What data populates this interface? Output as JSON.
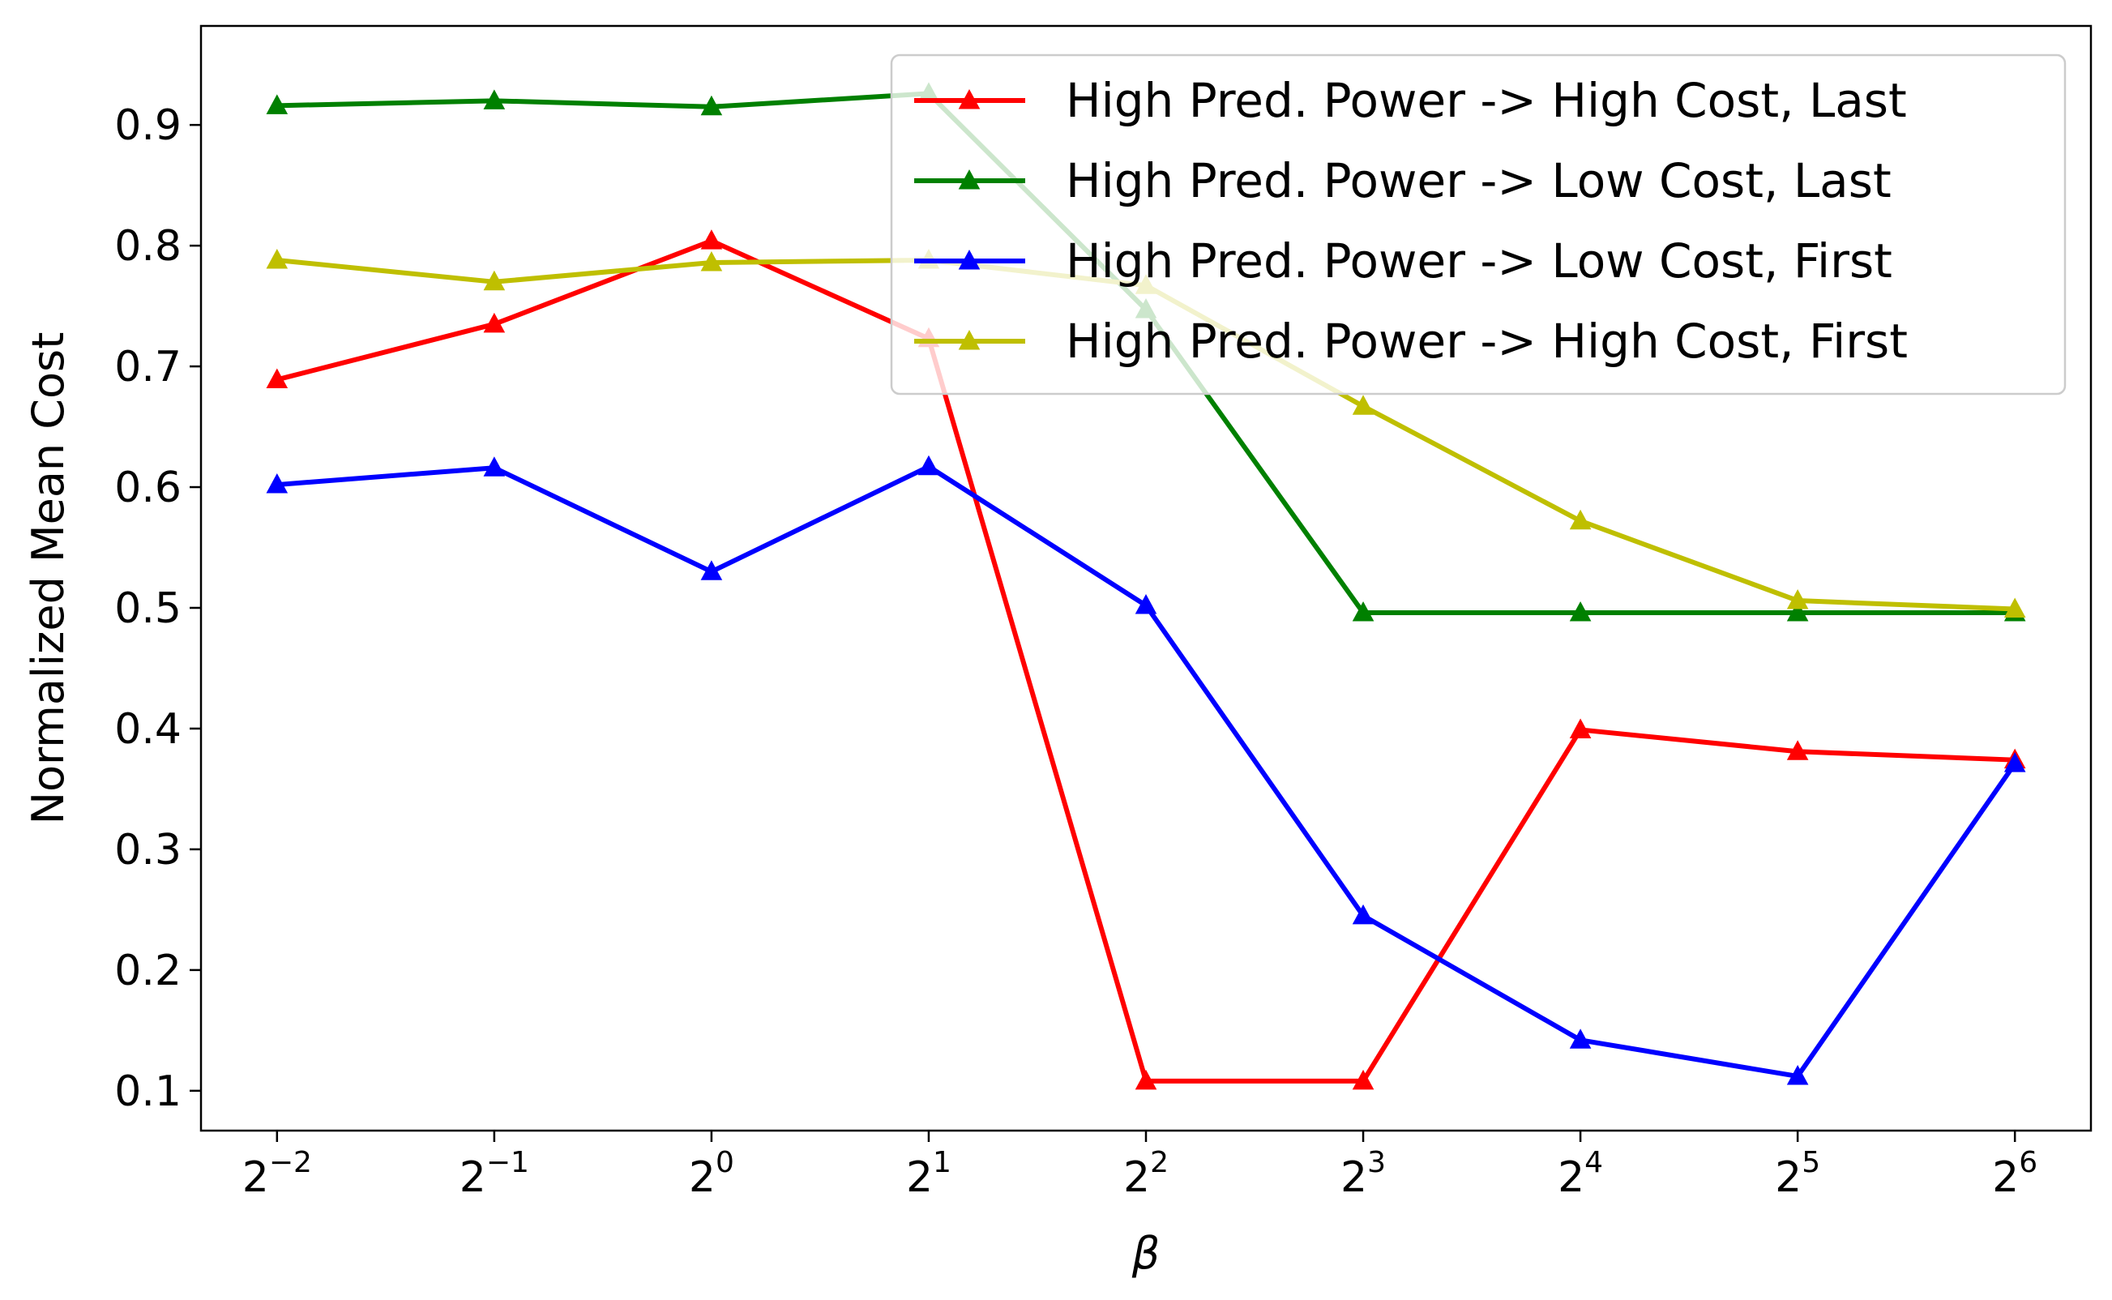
{
  "chart_data": {
    "type": "line",
    "title": "",
    "xlabel": "β",
    "ylabel": "Normalized Mean Cost",
    "x": [
      -2,
      -1,
      0,
      1,
      2,
      3,
      4,
      5,
      6
    ],
    "x_tick_labels": [
      {
        "base": "2",
        "exp": "−2"
      },
      {
        "base": "2",
        "exp": "−1"
      },
      {
        "base": "2",
        "exp": "0"
      },
      {
        "base": "2",
        "exp": "1"
      },
      {
        "base": "2",
        "exp": "2"
      },
      {
        "base": "2",
        "exp": "3"
      },
      {
        "base": "2",
        "exp": "4"
      },
      {
        "base": "2",
        "exp": "5"
      },
      {
        "base": "2",
        "exp": "6"
      }
    ],
    "x_scale": "log2",
    "xlim": [
      -2.35,
      6.35
    ],
    "ylim": [
      0.067,
      0.982
    ],
    "y_ticks": [
      0.1,
      0.2,
      0.3,
      0.4,
      0.5,
      0.6,
      0.7,
      0.8,
      0.9
    ],
    "y_tick_labels": [
      "0.1",
      "0.2",
      "0.3",
      "0.4",
      "0.5",
      "0.6",
      "0.7",
      "0.8",
      "0.9"
    ],
    "grid": false,
    "legend_position": "top-right",
    "marker": "triangle",
    "series": [
      {
        "name": "High Pred. Power -> High Cost, Last",
        "color": "#ff0000",
        "values": [
          0.689,
          0.735,
          0.804,
          0.723,
          0.108,
          0.108,
          0.399,
          0.381,
          0.374
        ]
      },
      {
        "name": "High Pred. Power -> Low Cost, Last",
        "color": "#008000",
        "values": [
          0.916,
          0.92,
          0.915,
          0.926,
          0.747,
          0.496,
          0.496,
          0.496,
          0.496
        ]
      },
      {
        "name": "High Pred. Power -> Low Cost, First",
        "color": "#0000ff",
        "values": [
          0.602,
          0.616,
          0.53,
          0.617,
          0.502,
          0.245,
          0.142,
          0.112,
          0.371
        ]
      },
      {
        "name": "High Pred. Power -> High Cost, First",
        "color": "#bfbf00",
        "values": [
          0.788,
          0.77,
          0.786,
          0.788,
          0.767,
          0.667,
          0.572,
          0.506,
          0.499
        ]
      }
    ]
  }
}
